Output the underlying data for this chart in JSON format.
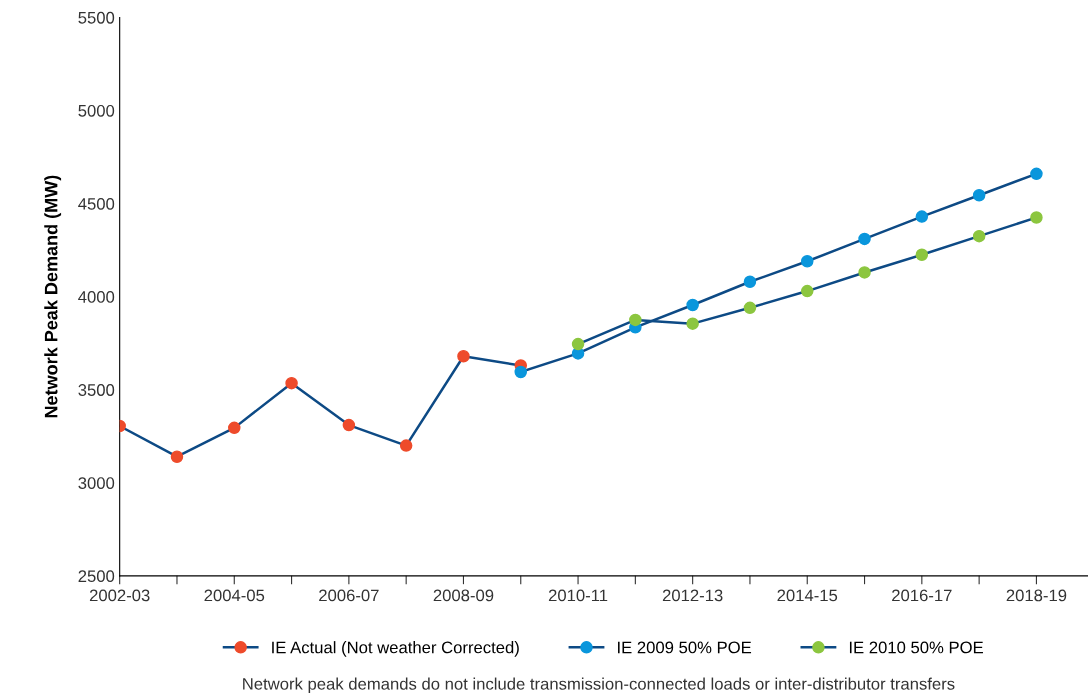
{
  "chart_data": {
    "type": "line",
    "ylabel": "Network Peak Demand (MW)",
    "categories": [
      "2002-03",
      null,
      "2004-05",
      null,
      "2006-07",
      null,
      "2008-09",
      null,
      "2010-11",
      null,
      "2012-13",
      null,
      "2014-15",
      null,
      "2016-17",
      null,
      "2018-19"
    ],
    "series": [
      {
        "name": "IE Actual (Not weather Corrected)",
        "color": "#ee4b2b",
        "values": [
          3305,
          3140,
          3295,
          3535,
          3310,
          3200,
          3680,
          3630,
          null,
          null,
          null,
          null,
          null,
          null,
          null,
          null,
          null
        ]
      },
      {
        "name": "IE 2009 50% POE",
        "color": "#0a96dc",
        "values": [
          null,
          null,
          null,
          null,
          null,
          null,
          null,
          3595,
          3695,
          3835,
          3955,
          4080,
          4190,
          4310,
          4430,
          4545,
          4660
        ]
      },
      {
        "name": "IE 2010 50% POE",
        "color": "#8cc63f",
        "values": [
          null,
          null,
          null,
          null,
          null,
          null,
          null,
          null,
          3745,
          3875,
          3855,
          3940,
          4030,
          4130,
          4225,
          4325,
          4425
        ]
      }
    ],
    "ylim": [
      2500,
      5500
    ],
    "yticks": [
      2500,
      3000,
      3500,
      4000,
      4500,
      5000,
      5500
    ],
    "marker": "circle",
    "grid": false,
    "legend": "bottom",
    "annotations": [
      "Network peak demands do not include transmission-connected loads or inter-distributor transfers"
    ]
  }
}
